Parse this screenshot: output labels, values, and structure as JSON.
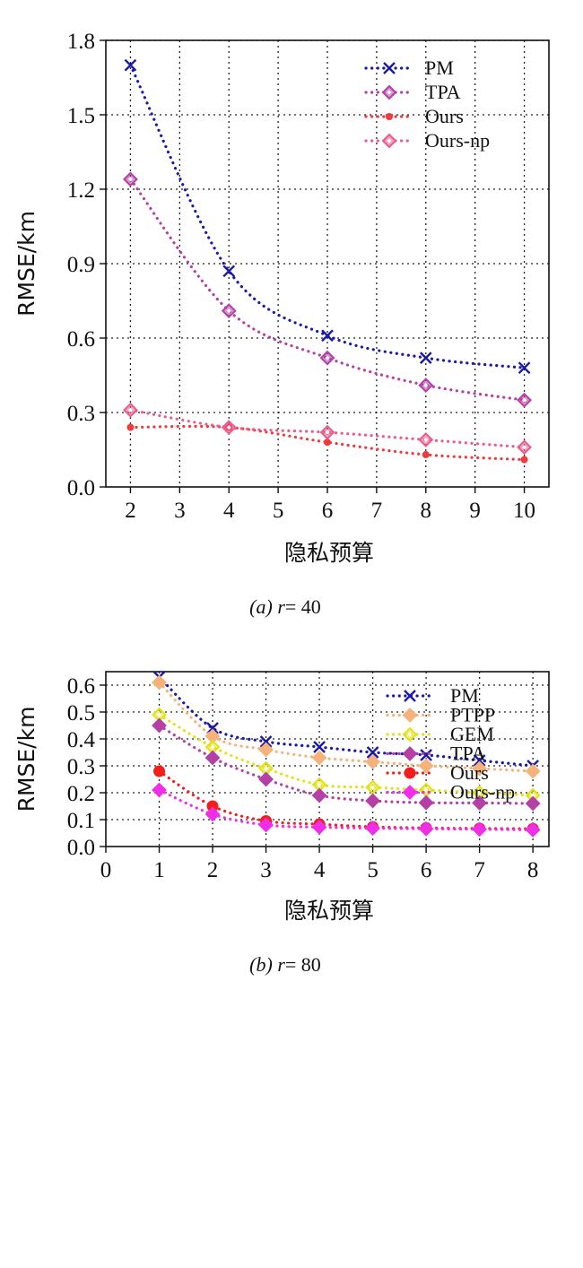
{
  "chart_data": [
    {
      "type": "line",
      "ylabel": "RMSE/km",
      "xlabel": "隐私预算",
      "caption_prefix": "(a)",
      "caption_var": "r",
      "caption_eq": "= 40",
      "x": [
        2,
        4,
        6,
        8,
        10
      ],
      "xlim": [
        1.5,
        10.5
      ],
      "xticks": [
        2,
        3,
        4,
        5,
        6,
        7,
        8,
        9,
        10
      ],
      "ylim": [
        0,
        1.8
      ],
      "yticks": [
        "0.0",
        "0.3",
        "0.6",
        "0.9",
        "1.2",
        "1.5",
        "1.8"
      ],
      "grid": true,
      "legend_position": "top-right",
      "series": [
        {
          "name": "PM",
          "values": [
            1.7,
            0.87,
            0.61,
            0.52,
            0.48
          ],
          "color": "#1a1aa6",
          "marker": "x"
        },
        {
          "name": "TPA",
          "values": [
            1.24,
            0.71,
            0.52,
            0.41,
            0.35
          ],
          "color": "#b43fa5",
          "marker": "diamond-open"
        },
        {
          "name": "Ours",
          "values": [
            0.24,
            0.24,
            0.18,
            0.13,
            0.11
          ],
          "color": "#ef3b3b",
          "marker": "dot"
        },
        {
          "name": "Ours-np",
          "values": [
            0.31,
            0.24,
            0.22,
            0.19,
            0.16
          ],
          "color": "#ea5d8c",
          "marker": "diamond-open"
        }
      ]
    },
    {
      "type": "line",
      "ylabel": "RMSE/km",
      "xlabel": "隐私预算",
      "caption_prefix": "(b)",
      "caption_var": "r",
      "caption_eq": "= 80",
      "x": [
        1,
        2,
        3,
        4,
        5,
        6,
        7,
        8
      ],
      "xlim": [
        0,
        8.3
      ],
      "xticks": [
        0,
        1,
        2,
        3,
        4,
        5,
        6,
        7,
        8
      ],
      "ylim": [
        0,
        0.65
      ],
      "yticks": [
        "0.0",
        "0.1",
        "0.2",
        "0.3",
        "0.4",
        "0.5",
        "0.6"
      ],
      "grid": true,
      "legend_position": "top-right",
      "series": [
        {
          "name": "PM",
          "values": [
            0.63,
            0.44,
            0.39,
            0.37,
            0.35,
            0.34,
            0.32,
            0.3
          ],
          "color": "#1a1aa6",
          "marker": "x"
        },
        {
          "name": "PTPP",
          "values": [
            0.61,
            0.41,
            0.36,
            0.33,
            0.315,
            0.3,
            0.29,
            0.28
          ],
          "color": "#f5b27a",
          "marker": "diamond-filled"
        },
        {
          "name": "GEM",
          "values": [
            0.49,
            0.37,
            0.29,
            0.23,
            0.22,
            0.21,
            0.2,
            0.19
          ],
          "color": "#e2e21a",
          "marker": "diamond-open"
        },
        {
          "name": "TPA",
          "values": [
            0.45,
            0.33,
            0.25,
            0.19,
            0.17,
            0.163,
            0.162,
            0.16
          ],
          "color": "#b43fa5",
          "marker": "diamond-filled"
        },
        {
          "name": "Ours",
          "values": [
            0.28,
            0.15,
            0.095,
            0.083,
            0.073,
            0.069,
            0.067,
            0.066
          ],
          "color": "#f21d1d",
          "marker": "dot-large"
        },
        {
          "name": "Ours-np",
          "values": [
            0.21,
            0.12,
            0.08,
            0.072,
            0.068,
            0.066,
            0.064,
            0.062
          ],
          "color": "#ef2ee8",
          "marker": "diamond-filled"
        }
      ]
    }
  ]
}
